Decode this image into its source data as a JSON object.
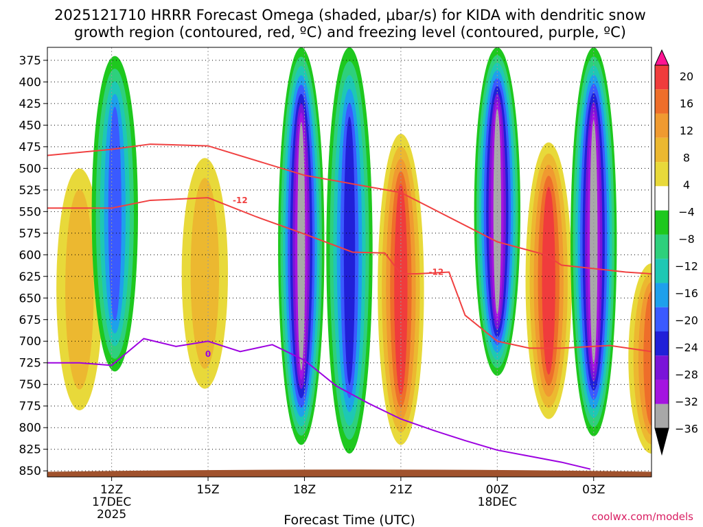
{
  "chart_data": {
    "type": "heatmap",
    "title_line1": "2025121710 HRRR Forecast Omega (shaded, μbar/s) for KIDA with dendritic snow",
    "title_line2": "growth region (contoured, red, ºC) and freezing level (contoured, purple, ºC)",
    "xlabel": "Forecast Time (UTC)",
    "credit": "coolwx.com/models",
    "x_ticks": [
      {
        "hour": 12,
        "label": "12Z",
        "sub1": "17DEC",
        "sub2": "2025"
      },
      {
        "hour": 15,
        "label": "15Z",
        "sub1": "",
        "sub2": ""
      },
      {
        "hour": 18,
        "label": "18Z",
        "sub1": "",
        "sub2": ""
      },
      {
        "hour": 21,
        "label": "21Z",
        "sub1": "",
        "sub2": ""
      },
      {
        "hour": 24,
        "label": "00Z",
        "sub1": "18DEC",
        "sub2": ""
      },
      {
        "hour": 27,
        "label": "03Z",
        "sub1": "",
        "sub2": ""
      }
    ],
    "x_range_hours": [
      10,
      28.8
    ],
    "y_levels_hPa": [
      375,
      400,
      425,
      450,
      475,
      500,
      525,
      550,
      575,
      600,
      625,
      650,
      675,
      700,
      725,
      750,
      775,
      800,
      825,
      850
    ],
    "y_range_hPa": [
      360,
      857
    ],
    "colorbar": {
      "labels": [
        "20",
        "16",
        "12",
        "8",
        "4",
        "−4",
        "−8",
        "−12",
        "−16",
        "−20",
        "−24",
        "−28",
        "−32",
        "−36"
      ],
      "colors": [
        "#ff1493",
        "#f03c3c",
        "#ee6e2a",
        "#f09a30",
        "#ecb830",
        "#e8d93a",
        "#ffffff",
        "#1ec81e",
        "#2ed07c",
        "#1ec8b4",
        "#1ea0ec",
        "#3a5aff",
        "#2020d8",
        "#7a14d8",
        "#a414e0",
        "#a8a8a8",
        "#000000"
      ]
    },
    "omega_columns": [
      {
        "hour": 11.0,
        "value": 10,
        "top_hPa": 500,
        "bottom_hPa": 780
      },
      {
        "hour": 12.1,
        "value": -20,
        "top_hPa": 370,
        "bottom_hPa": 735
      },
      {
        "hour": 14.9,
        "value": 8,
        "top_hPa": 488,
        "bottom_hPa": 755
      },
      {
        "hour": 17.9,
        "value": -36,
        "top_hPa": 360,
        "bottom_hPa": 820
      },
      {
        "hour": 19.4,
        "value": -24,
        "top_hPa": 360,
        "bottom_hPa": 830
      },
      {
        "hour": 21.0,
        "value": 20,
        "top_hPa": 460,
        "bottom_hPa": 820
      },
      {
        "hour": 24.0,
        "value": -36,
        "top_hPa": 360,
        "bottom_hPa": 740
      },
      {
        "hour": 25.6,
        "value": 20,
        "top_hPa": 470,
        "bottom_hPa": 790
      },
      {
        "hour": 27.0,
        "value": -36,
        "top_hPa": 360,
        "bottom_hPa": 810
      },
      {
        "hour": 28.8,
        "value": 16,
        "top_hPa": 610,
        "bottom_hPa": 830
      }
    ],
    "series": [
      {
        "name": "dgz_top_-18C",
        "color": "#f04040",
        "label": "",
        "x": [
          10,
          12,
          13.2,
          15,
          18,
          21,
          22,
          24,
          25.5,
          26,
          28,
          28.8
        ],
        "y": [
          485,
          478,
          472,
          474,
          508,
          528,
          547,
          585,
          600,
          612,
          620,
          622
        ]
      },
      {
        "name": "dgz_bottom_-12C",
        "color": "#f04040",
        "label": "-12",
        "x": [
          10,
          12,
          13.2,
          15,
          16.5,
          18,
          19.5,
          20.5,
          21,
          21.5,
          22.5,
          23,
          24,
          25,
          26,
          27.5,
          28.8
        ],
        "y": [
          546,
          546,
          537,
          534,
          556,
          576,
          597,
          598,
          622,
          622,
          620,
          670,
          700,
          708,
          708,
          705,
          712
        ]
      },
      {
        "name": "freezing_level_0C",
        "color": "#9c00e0",
        "label": "0",
        "x": [
          10,
          11,
          12,
          13,
          14,
          15,
          16,
          17,
          18,
          19,
          20,
          21,
          22,
          23,
          24,
          25,
          26,
          26.9
        ],
        "y": [
          725,
          725,
          728,
          697,
          706,
          700,
          712,
          704,
          722,
          752,
          772,
          790,
          803,
          815,
          826,
          833,
          840,
          848
        ]
      }
    ],
    "contour_labels": [
      {
        "text": "-12",
        "hour": 16.0,
        "hPa": 537,
        "color": "#f04040"
      },
      {
        "text": "-12",
        "hour": 22.1,
        "hPa": 620,
        "color": "#f04040"
      },
      {
        "text": "0",
        "hour": 15.0,
        "hPa": 715,
        "color": "#9c00e0"
      }
    ]
  }
}
